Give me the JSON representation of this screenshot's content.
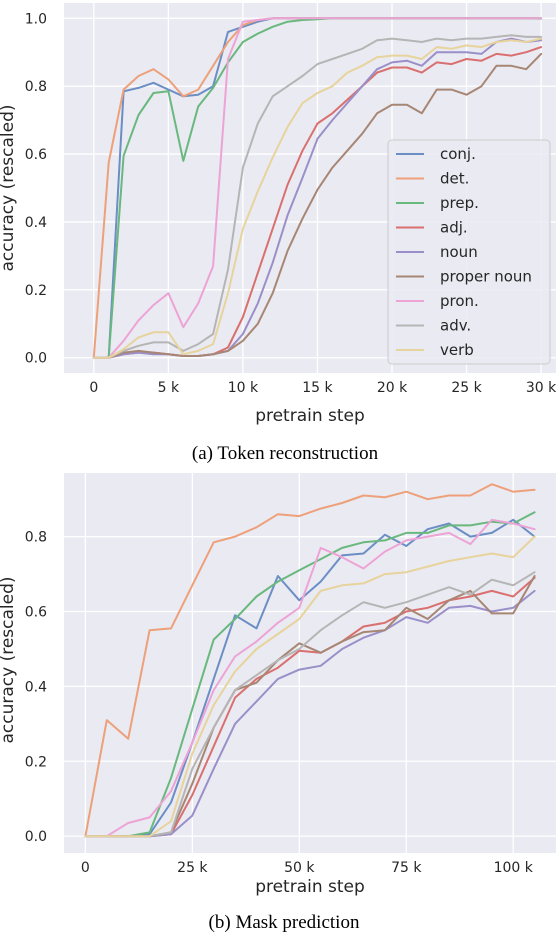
{
  "colors": {
    "conj.": "#6b8ec4",
    "det.": "#eda07a",
    "prep.": "#69b87d",
    "adj.": "#d9706f",
    "noun": "#9a8fc8",
    "proper noun": "#a88674",
    "pron.": "#eda3d6",
    "adv.": "#b5b5b5",
    "verb": "#e7d39c"
  },
  "chart_data": [
    {
      "type": "line",
      "caption": "(a) Token reconstruction",
      "xlabel": "pretrain step",
      "ylabel": "accuracy (rescaled)",
      "xlim": [
        -2000,
        31000
      ],
      "ylim": [
        -0.045,
        1.045
      ],
      "xticks": [
        0,
        5000,
        10000,
        15000,
        20000,
        25000,
        30000
      ],
      "xticklabels": [
        "0",
        "5 k",
        "10 k",
        "15 k",
        "20 k",
        "25 k",
        "30 k"
      ],
      "yticks": [
        0.0,
        0.2,
        0.4,
        0.6,
        0.8,
        1.0
      ],
      "yticklabels": [
        "0.0",
        "0.2",
        "0.4",
        "0.6",
        "0.8",
        "1.0"
      ],
      "grid": true,
      "legend": {
        "position": "lower-right",
        "entries": [
          "conj.",
          "det.",
          "prep.",
          "adj.",
          "noun",
          "proper noun",
          "pron.",
          "adv.",
          "verb"
        ]
      },
      "x": [
        0,
        1000,
        2000,
        3000,
        4000,
        5000,
        6000,
        7000,
        8000,
        9000,
        10000,
        11000,
        12000,
        13000,
        14000,
        15000,
        16000,
        17000,
        18000,
        19000,
        20000,
        21000,
        22000,
        23000,
        24000,
        25000,
        26000,
        27000,
        28000,
        29000,
        30000
      ],
      "series": [
        {
          "name": "conj.",
          "values": [
            0.0,
            0.0,
            0.785,
            0.795,
            0.81,
            0.79,
            0.77,
            0.775,
            0.8,
            0.96,
            0.975,
            0.99,
            1.0,
            1.0,
            1.0,
            1.0,
            1.0,
            1.0,
            1.0,
            1.0,
            1.0,
            1.0,
            1.0,
            1.0,
            1.0,
            1.0,
            1.0,
            1.0,
            1.0,
            1.0,
            0.999
          ]
        },
        {
          "name": "det.",
          "values": [
            0.0,
            0.575,
            0.79,
            0.83,
            0.85,
            0.82,
            0.77,
            0.79,
            0.86,
            0.93,
            0.98,
            0.995,
            1.0,
            1.0,
            1.0,
            1.0,
            1.0,
            1.0,
            1.0,
            1.0,
            1.0,
            1.0,
            1.0,
            1.0,
            1.0,
            1.0,
            1.0,
            1.0,
            1.0,
            1.0,
            1.0
          ]
        },
        {
          "name": "prep.",
          "values": [
            0.0,
            0.0,
            0.595,
            0.715,
            0.78,
            0.785,
            0.58,
            0.74,
            0.795,
            0.87,
            0.93,
            0.955,
            0.975,
            0.99,
            0.995,
            0.997,
            1.0,
            1.0,
            1.0,
            1.0,
            1.0,
            1.0,
            1.0,
            1.0,
            1.0,
            1.0,
            1.0,
            1.0,
            1.0,
            1.0,
            1.0
          ]
        },
        {
          "name": "adj.",
          "values": [
            0.0,
            0.0,
            0.01,
            0.015,
            0.015,
            0.01,
            0.005,
            0.005,
            0.01,
            0.03,
            0.12,
            0.25,
            0.38,
            0.51,
            0.61,
            0.69,
            0.72,
            0.76,
            0.8,
            0.84,
            0.855,
            0.855,
            0.84,
            0.87,
            0.865,
            0.88,
            0.875,
            0.895,
            0.89,
            0.9,
            0.915
          ]
        },
        {
          "name": "noun",
          "values": [
            0.0,
            0.0,
            0.01,
            0.015,
            0.01,
            0.01,
            0.005,
            0.005,
            0.01,
            0.02,
            0.07,
            0.16,
            0.28,
            0.42,
            0.53,
            0.645,
            0.7,
            0.75,
            0.8,
            0.85,
            0.87,
            0.875,
            0.86,
            0.9,
            0.9,
            0.9,
            0.895,
            0.93,
            0.94,
            0.93,
            0.935
          ]
        },
        {
          "name": "proper noun",
          "values": [
            0.0,
            0.0,
            0.015,
            0.02,
            0.015,
            0.01,
            0.005,
            0.005,
            0.01,
            0.02,
            0.05,
            0.1,
            0.19,
            0.315,
            0.41,
            0.495,
            0.56,
            0.61,
            0.66,
            0.72,
            0.745,
            0.745,
            0.72,
            0.79,
            0.79,
            0.775,
            0.8,
            0.86,
            0.86,
            0.85,
            0.895
          ]
        },
        {
          "name": "pron.",
          "values": [
            0.0,
            0.0,
            0.05,
            0.11,
            0.155,
            0.19,
            0.09,
            0.16,
            0.27,
            0.88,
            0.99,
            0.995,
            1.0,
            1.0,
            1.0,
            1.0,
            1.0,
            1.0,
            1.0,
            1.0,
            1.0,
            1.0,
            1.0,
            1.0,
            1.0,
            1.0,
            1.0,
            1.0,
            1.0,
            1.0,
            1.0
          ]
        },
        {
          "name": "adv.",
          "values": [
            0.0,
            0.0,
            0.02,
            0.035,
            0.045,
            0.045,
            0.02,
            0.04,
            0.07,
            0.26,
            0.56,
            0.69,
            0.77,
            0.8,
            0.83,
            0.865,
            0.88,
            0.895,
            0.91,
            0.935,
            0.94,
            0.935,
            0.93,
            0.94,
            0.935,
            0.94,
            0.94,
            0.945,
            0.95,
            0.945,
            0.945
          ]
        },
        {
          "name": "verb",
          "values": [
            0.0,
            0.0,
            0.025,
            0.06,
            0.075,
            0.075,
            0.01,
            0.02,
            0.04,
            0.19,
            0.38,
            0.49,
            0.59,
            0.68,
            0.75,
            0.78,
            0.8,
            0.84,
            0.86,
            0.885,
            0.89,
            0.89,
            0.88,
            0.915,
            0.91,
            0.92,
            0.915,
            0.93,
            0.935,
            0.93,
            0.94
          ]
        }
      ]
    },
    {
      "type": "line",
      "caption": "(b) Mask prediction",
      "xlabel": "pretrain step",
      "ylabel": "accuracy (rescaled)",
      "xlim": [
        -5000,
        110000
      ],
      "ylim": [
        -0.045,
        0.97
      ],
      "xticks": [
        0,
        25000,
        50000,
        75000,
        100000
      ],
      "xticklabels": [
        "0",
        "25 k",
        "50 k",
        "75 k",
        "100 k"
      ],
      "yticks": [
        0.0,
        0.2,
        0.4,
        0.6,
        0.8
      ],
      "yticklabels": [
        "0.0",
        "0.2",
        "0.4",
        "0.6",
        "0.8"
      ],
      "grid": true,
      "x": [
        0,
        5000,
        10000,
        15000,
        20000,
        25000,
        30000,
        35000,
        40000,
        45000,
        50000,
        55000,
        60000,
        65000,
        70000,
        75000,
        80000,
        85000,
        90000,
        95000,
        100000,
        105000
      ],
      "series": [
        {
          "name": "conj.",
          "values": [
            0.0,
            0.0,
            0.0,
            0.005,
            0.09,
            0.25,
            0.42,
            0.59,
            0.555,
            0.695,
            0.63,
            0.68,
            0.75,
            0.755,
            0.805,
            0.775,
            0.82,
            0.835,
            0.8,
            0.81,
            0.845,
            0.8
          ]
        },
        {
          "name": "det.",
          "values": [
            0.0,
            0.31,
            0.26,
            0.55,
            0.555,
            0.67,
            0.785,
            0.8,
            0.825,
            0.86,
            0.855,
            0.875,
            0.89,
            0.91,
            0.905,
            0.92,
            0.9,
            0.91,
            0.91,
            0.94,
            0.92,
            0.925
          ]
        },
        {
          "name": "prep.",
          "values": [
            0.0,
            0.0,
            0.0,
            0.01,
            0.155,
            0.34,
            0.525,
            0.58,
            0.64,
            0.68,
            0.71,
            0.74,
            0.77,
            0.785,
            0.79,
            0.81,
            0.81,
            0.83,
            0.83,
            0.84,
            0.835,
            0.865
          ]
        },
        {
          "name": "adj.",
          "values": [
            0.0,
            0.0,
            0.0,
            0.0,
            0.005,
            0.11,
            0.24,
            0.37,
            0.42,
            0.45,
            0.495,
            0.49,
            0.52,
            0.56,
            0.57,
            0.6,
            0.61,
            0.63,
            0.64,
            0.655,
            0.64,
            0.69
          ]
        },
        {
          "name": "noun",
          "values": [
            0.0,
            0.0,
            0.0,
            0.0,
            0.005,
            0.055,
            0.18,
            0.3,
            0.36,
            0.42,
            0.445,
            0.455,
            0.5,
            0.53,
            0.55,
            0.585,
            0.57,
            0.61,
            0.615,
            0.6,
            0.61,
            0.655
          ]
        },
        {
          "name": "proper noun",
          "values": [
            0.0,
            0.0,
            0.0,
            0.0,
            0.01,
            0.14,
            0.29,
            0.39,
            0.41,
            0.47,
            0.515,
            0.49,
            0.52,
            0.545,
            0.55,
            0.61,
            0.58,
            0.63,
            0.655,
            0.595,
            0.595,
            0.695
          ]
        },
        {
          "name": "pron.",
          "values": [
            0.0,
            0.0,
            0.035,
            0.05,
            0.12,
            0.25,
            0.39,
            0.48,
            0.52,
            0.57,
            0.61,
            0.77,
            0.745,
            0.715,
            0.76,
            0.79,
            0.8,
            0.81,
            0.78,
            0.845,
            0.835,
            0.82
          ]
        },
        {
          "name": "adv.",
          "values": [
            0.0,
            0.0,
            0.0,
            0.0,
            0.01,
            0.18,
            0.29,
            0.39,
            0.43,
            0.47,
            0.5,
            0.55,
            0.59,
            0.625,
            0.61,
            0.625,
            0.645,
            0.665,
            0.645,
            0.685,
            0.67,
            0.705
          ]
        },
        {
          "name": "verb",
          "values": [
            0.0,
            0.0,
            0.0,
            0.0,
            0.04,
            0.22,
            0.35,
            0.44,
            0.5,
            0.54,
            0.58,
            0.655,
            0.67,
            0.675,
            0.7,
            0.705,
            0.72,
            0.735,
            0.745,
            0.755,
            0.745,
            0.8
          ]
        }
      ]
    }
  ]
}
